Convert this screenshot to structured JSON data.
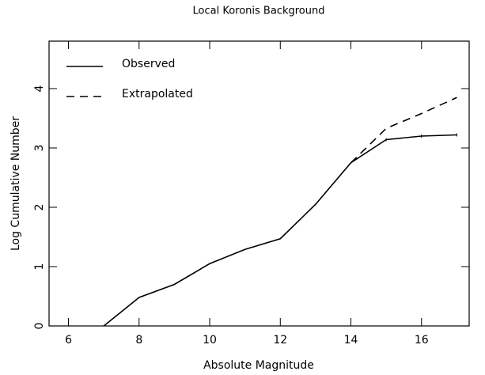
{
  "chart_data": {
    "type": "line",
    "title": "Local Koronis Background",
    "xlabel": "Absolute Magnitude",
    "ylabel": "Log Cumulative Number",
    "xlim": [
      5.45,
      17.35
    ],
    "ylim": [
      0,
      4.8
    ],
    "xticks": [
      6,
      8,
      10,
      12,
      14,
      16
    ],
    "yticks": [
      0,
      1,
      2,
      3,
      4
    ],
    "legend": "upper left",
    "series": [
      {
        "name": "Observed",
        "color": "#000000",
        "style": "solid",
        "x": [
          7,
          8,
          9,
          10,
          11,
          12,
          13,
          14,
          15,
          16,
          17
        ],
        "values": [
          0,
          0.48,
          0.7,
          1.05,
          1.29,
          1.47,
          2.05,
          2.75,
          3.14,
          3.2,
          3.22
        ]
      },
      {
        "name": "Extrapolated",
        "color": "#000000",
        "style": "dashed",
        "x": [
          14,
          15,
          16,
          17
        ],
        "values": [
          2.75,
          3.33,
          3.58,
          3.85
        ]
      }
    ]
  }
}
